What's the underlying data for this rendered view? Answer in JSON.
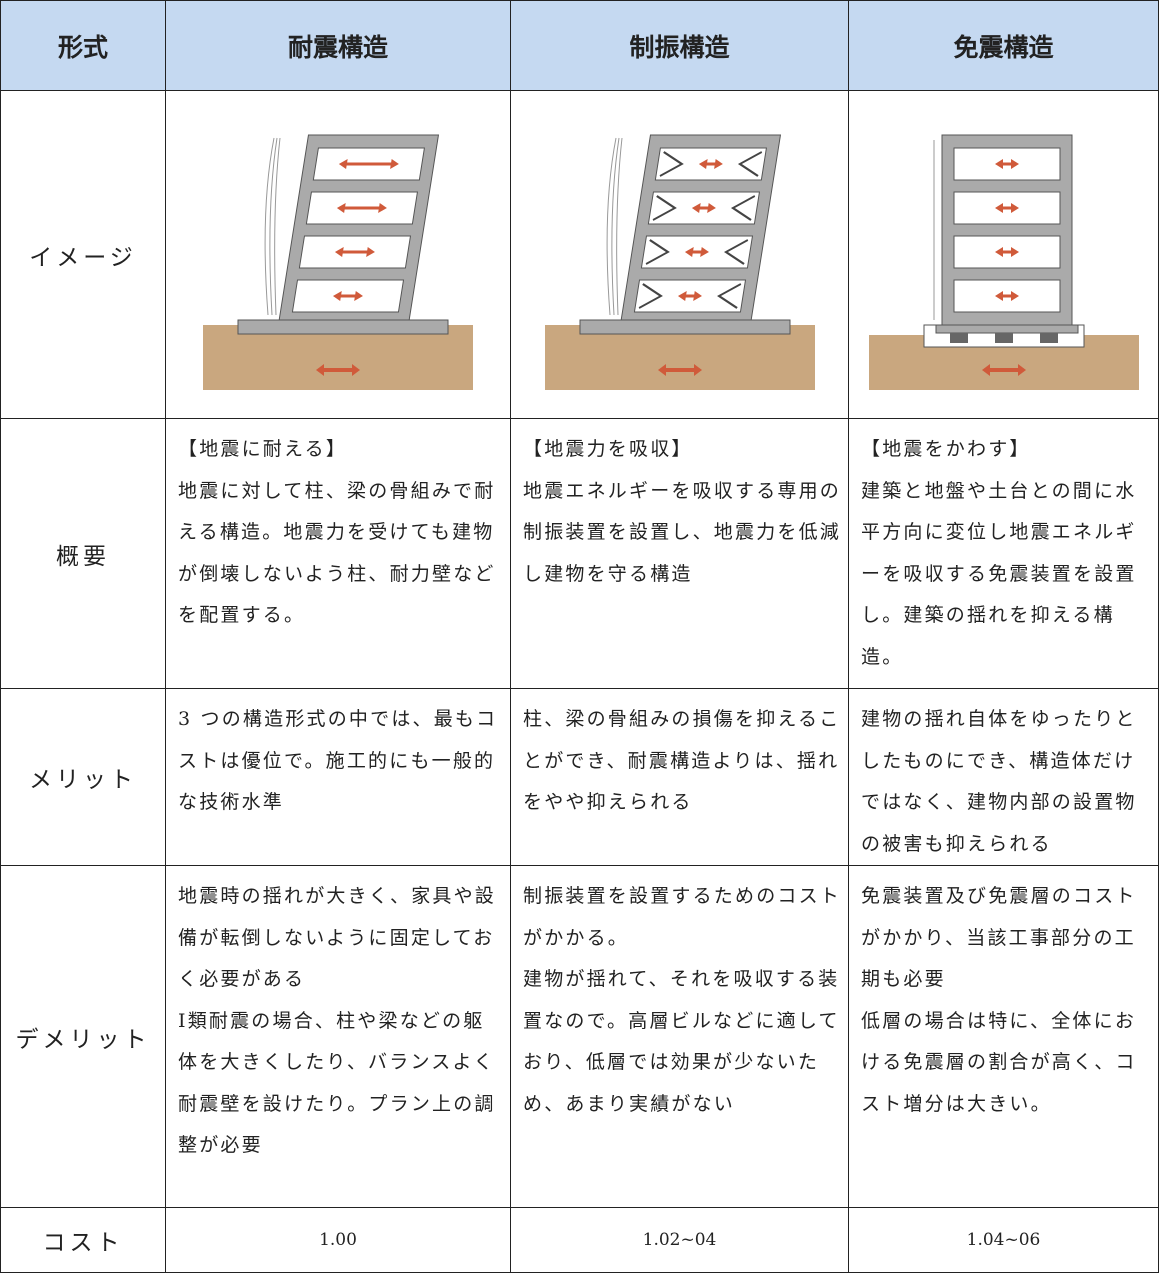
{
  "table": {
    "header": [
      "形式",
      "耐震構造",
      "制振構造",
      "免震構造"
    ],
    "rows": [
      {
        "label": "イメージ"
      },
      {
        "label": "概要",
        "cells": [
          [
            "【地震に耐える】",
            "地震に対して柱、梁の骨組みで耐える構造。地震力を受けても建物が倒壊しないよう柱、耐力壁などを配置する。"
          ],
          [
            "【地震力を吸収】",
            "地震エネルギーを吸収する専用の制振装置を設置し、地震力を低減し建物を守る構造"
          ],
          [
            "【地震をかわす】",
            "建築と地盤や土台との間に水平方向に変位し地震エネルギーを吸収する免震装置を設置し。建築の揺れを抑える構造。"
          ]
        ]
      },
      {
        "label": "メリット",
        "cells": [
          [
            "3 つの構造形式の中では、最もコストは優位で。施工的にも一般的な技術水準"
          ],
          [
            "柱、梁の骨組みの損傷を抑えることができ、耐震構造よりは、揺れをやや抑えられる"
          ],
          [
            "建物の揺れ自体をゆったりとしたものにでき、構造体だけではなく、建物内部の設置物の被害も抑えられる"
          ]
        ]
      },
      {
        "label": "デメリット",
        "cells": [
          [
            "地震時の揺れが大きく、家具や設備が転倒しないように固定しておく必要がある",
            "Ⅰ類耐震の場合、柱や梁などの躯体を大きくしたり、バランスよく耐震壁を設けたり。プラン上の調整が必要"
          ],
          [
            "制振装置を設置するためのコストがかかる。",
            "建物が揺れて、それを吸収する装置なので。高層ビルなどに適しており、低層では効果が少ないため、あまり実績がない"
          ],
          [
            "免震装置及び免震層のコストがかかり、当該工事部分の工期も必要",
            "低層の場合は特に、全体における免震層の割合が高く、コスト増分は大きい。"
          ]
        ]
      },
      {
        "label": "コスト",
        "cells": [
          [
            "1.00"
          ],
          [
            "1.02~04"
          ],
          [
            "1.04~06"
          ]
        ]
      }
    ]
  }
}
